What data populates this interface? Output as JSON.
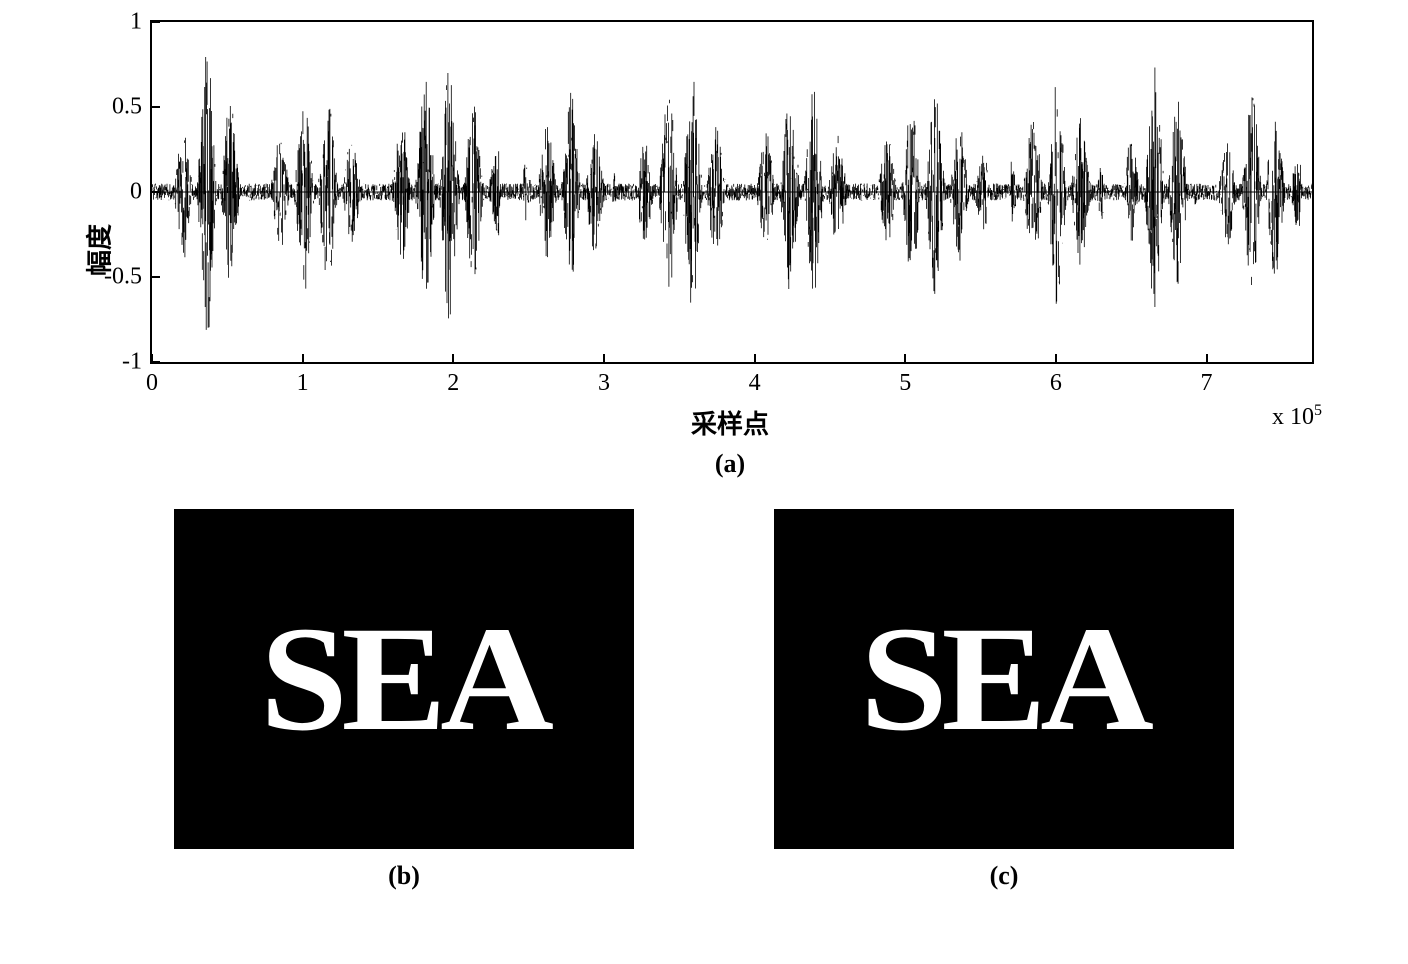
{
  "chart": {
    "type": "line",
    "ylabel": "幅度",
    "xlabel": "采样点",
    "x_multiplier": "x 10",
    "x_multiplier_exp": "5",
    "ylim": [
      -1,
      1
    ],
    "yticks": [
      -1,
      -0.5,
      0,
      0.5,
      1
    ],
    "ytick_labels": [
      "-1",
      "-0.5",
      "0",
      "0.5",
      "1"
    ],
    "xlim": [
      0,
      7.7
    ],
    "xticks": [
      0,
      1,
      2,
      3,
      4,
      5,
      6,
      7
    ],
    "xtick_labels": [
      "0",
      "1",
      "2",
      "3",
      "4",
      "5",
      "6",
      "7"
    ],
    "line_color": "#000000",
    "background_color": "#ffffff",
    "border_color": "#000000",
    "label_fontsize": 26,
    "tick_fontsize": 24,
    "panel_label": "(a)"
  },
  "panel_b": {
    "text": "SEA",
    "bg_color": "#000000",
    "text_color": "#ffffff",
    "label": "(b)"
  },
  "panel_c": {
    "text": "SEA",
    "bg_color": "#000000",
    "text_color": "#ffffff",
    "label": "(c)"
  }
}
